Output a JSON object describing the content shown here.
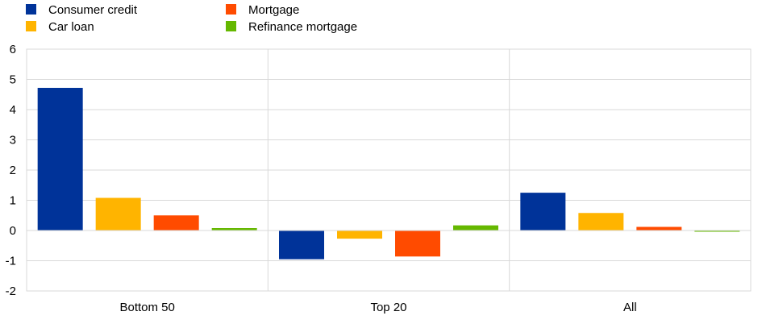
{
  "chart_data": {
    "type": "bar",
    "title": "",
    "xlabel": "",
    "ylabel": "",
    "categories": [
      "Bottom 50",
      "Top 20",
      "All"
    ],
    "series": [
      {
        "name": "Consumer credit",
        "color": "#003399",
        "values": [
          4.72,
          -0.95,
          1.25
        ]
      },
      {
        "name": "Car loan",
        "color": "#ffb400",
        "values": [
          1.08,
          -0.27,
          0.58
        ]
      },
      {
        "name": "Mortgage",
        "color": "#ff4b00",
        "values": [
          0.5,
          -0.86,
          0.12
        ]
      },
      {
        "name": "Refinance mortgage",
        "color": "#65b800",
        "values": [
          0.08,
          0.17,
          -0.02
        ]
      }
    ],
    "ylim": [
      -2,
      6
    ],
    "yticks": [
      -2,
      -1,
      0,
      1,
      2,
      3,
      4,
      5,
      6
    ],
    "grid": true,
    "legend_position": "top-left"
  }
}
